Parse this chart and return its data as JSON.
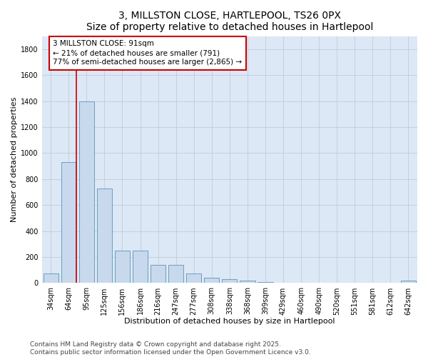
{
  "title": "3, MILLSTON CLOSE, HARTLEPOOL, TS26 0PX",
  "subtitle": "Size of property relative to detached houses in Hartlepool",
  "xlabel": "Distribution of detached houses by size in Hartlepool",
  "ylabel": "Number of detached properties",
  "categories": [
    "34sqm",
    "64sqm",
    "95sqm",
    "125sqm",
    "156sqm",
    "186sqm",
    "216sqm",
    "247sqm",
    "277sqm",
    "308sqm",
    "338sqm",
    "368sqm",
    "399sqm",
    "429sqm",
    "460sqm",
    "490sqm",
    "520sqm",
    "551sqm",
    "581sqm",
    "612sqm",
    "642sqm"
  ],
  "values": [
    75,
    930,
    1400,
    730,
    250,
    250,
    140,
    140,
    75,
    40,
    30,
    20,
    10,
    0,
    0,
    0,
    0,
    0,
    0,
    0,
    20
  ],
  "bar_color": "#c8d8ed",
  "bar_edge_color": "#6a9fc0",
  "property_line_bin": 1,
  "property_line_color": "#cc0000",
  "annotation_text": "3 MILLSTON CLOSE: 91sqm\n← 21% of detached houses are smaller (791)\n77% of semi-detached houses are larger (2,865) →",
  "annotation_box_facecolor": "white",
  "annotation_box_edgecolor": "#cc0000",
  "ylim": [
    0,
    1900
  ],
  "yticks": [
    0,
    200,
    400,
    600,
    800,
    1000,
    1200,
    1400,
    1600,
    1800
  ],
  "grid_color": "#c0ccd8",
  "background_color": "#dce8f5",
  "plot_bg_color": "#dce8f5",
  "footer_line1": "Contains HM Land Registry data © Crown copyright and database right 2025.",
  "footer_line2": "Contains public sector information licensed under the Open Government Licence v3.0.",
  "title_fontsize": 10,
  "axis_label_fontsize": 8,
  "tick_fontsize": 7,
  "annotation_fontsize": 7.5,
  "footer_fontsize": 6.5
}
